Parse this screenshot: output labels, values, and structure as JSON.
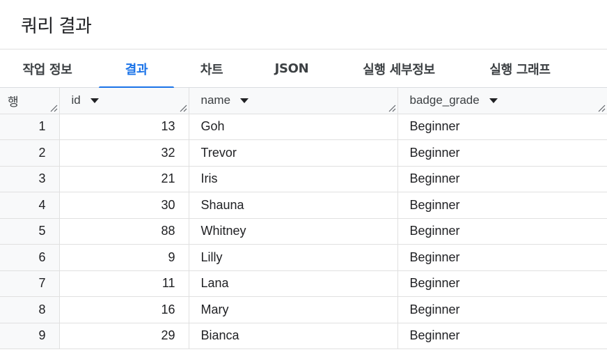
{
  "page": {
    "title": "쿼리 결과"
  },
  "tabs": [
    {
      "label": "작업 정보",
      "active": false
    },
    {
      "label": "결과",
      "active": true
    },
    {
      "label": "차트",
      "active": false
    },
    {
      "label": "JSON",
      "active": false
    },
    {
      "label": "실행 세부정보",
      "active": false
    },
    {
      "label": "실행 그래프",
      "active": false
    }
  ],
  "colors": {
    "accent": "#1a73e8",
    "header_bg": "#f8f9fa",
    "border": "#e0e0e0"
  },
  "table": {
    "columns": [
      "행",
      "id",
      "name",
      "badge_grade"
    ],
    "rows": [
      {
        "row": "1",
        "id": "13",
        "name": "Goh",
        "badge_grade": "Beginner"
      },
      {
        "row": "2",
        "id": "32",
        "name": "Trevor",
        "badge_grade": "Beginner"
      },
      {
        "row": "3",
        "id": "21",
        "name": "Iris",
        "badge_grade": "Beginner"
      },
      {
        "row": "4",
        "id": "30",
        "name": "Shauna",
        "badge_grade": "Beginner"
      },
      {
        "row": "5",
        "id": "88",
        "name": "Whitney",
        "badge_grade": "Beginner"
      },
      {
        "row": "6",
        "id": "9",
        "name": "Lilly",
        "badge_grade": "Beginner"
      },
      {
        "row": "7",
        "id": "11",
        "name": "Lana",
        "badge_grade": "Beginner"
      },
      {
        "row": "8",
        "id": "16",
        "name": "Mary",
        "badge_grade": "Beginner"
      },
      {
        "row": "9",
        "id": "29",
        "name": "Bianca",
        "badge_grade": "Beginner"
      }
    ]
  }
}
